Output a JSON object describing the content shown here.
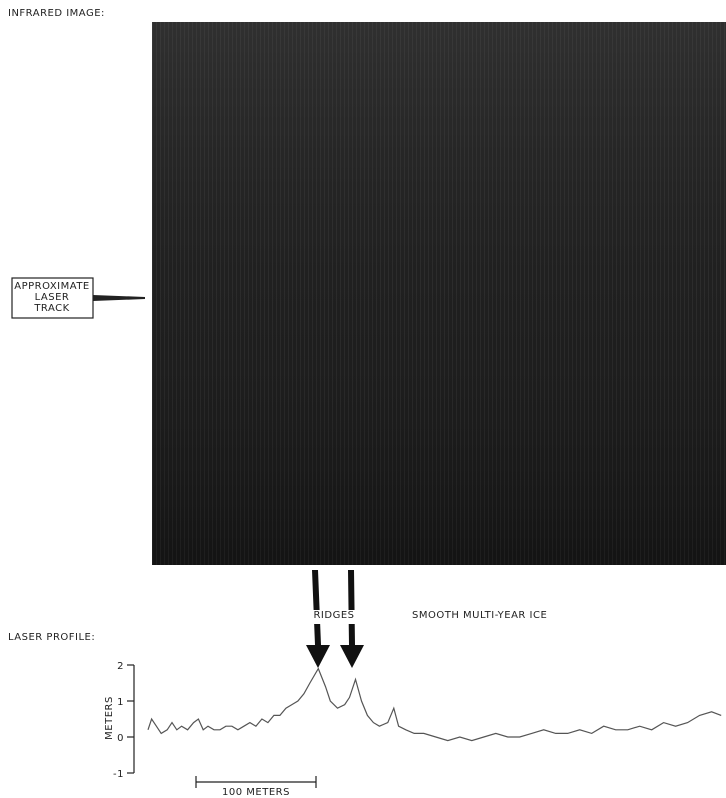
{
  "figure": {
    "image_label": "INFRARED IMAGE:",
    "track_label": [
      "APPROXIMATE",
      "LASER",
      "TRACK"
    ],
    "ridges_label": "RIDGES",
    "ice_label": "SMOOTH MULTI-YEAR ICE",
    "scale_label": "100 METERS"
  },
  "chart_data": {
    "type": "line",
    "title": "LASER PROFILE:",
    "y_label": "METERS",
    "color": "#555555",
    "ylim": [
      -1,
      2
    ],
    "yticks": [
      -1,
      0,
      1,
      2
    ],
    "xlim": [
      0,
      482
    ],
    "x": [
      0,
      3,
      7,
      11,
      16,
      20,
      24,
      28,
      33,
      38,
      42,
      46,
      50,
      55,
      60,
      65,
      70,
      75,
      80,
      85,
      90,
      95,
      100,
      105,
      110,
      115,
      120,
      125,
      130,
      135,
      142,
      148,
      152,
      158,
      164,
      168,
      173,
      178,
      183,
      188,
      193,
      200,
      205,
      209,
      215,
      222,
      230,
      240,
      250,
      260,
      270,
      280,
      290,
      300,
      310,
      320,
      330,
      340,
      350,
      360,
      370,
      380,
      390,
      400,
      410,
      420,
      430,
      440,
      450,
      460,
      470,
      478
    ],
    "series": [
      {
        "values": [
          0.2,
          0.5,
          0.3,
          0.1,
          0.2,
          0.4,
          0.2,
          0.3,
          0.2,
          0.4,
          0.5,
          0.2,
          0.3,
          0.2,
          0.2,
          0.3,
          0.3,
          0.2,
          0.3,
          0.4,
          0.3,
          0.5,
          0.4,
          0.6,
          0.6,
          0.8,
          0.9,
          1.0,
          1.2,
          1.5,
          1.9,
          1.4,
          1.0,
          0.8,
          0.9,
          1.1,
          1.6,
          1.0,
          0.6,
          0.4,
          0.3,
          0.4,
          0.8,
          0.3,
          0.2,
          0.1,
          0.1,
          0.0,
          -0.1,
          0.0,
          -0.1,
          0.0,
          0.1,
          0.0,
          0.0,
          0.1,
          0.2,
          0.1,
          0.1,
          0.2,
          0.1,
          0.3,
          0.2,
          0.2,
          0.3,
          0.2,
          0.4,
          0.3,
          0.4,
          0.6,
          0.7,
          0.6
        ]
      }
    ]
  }
}
